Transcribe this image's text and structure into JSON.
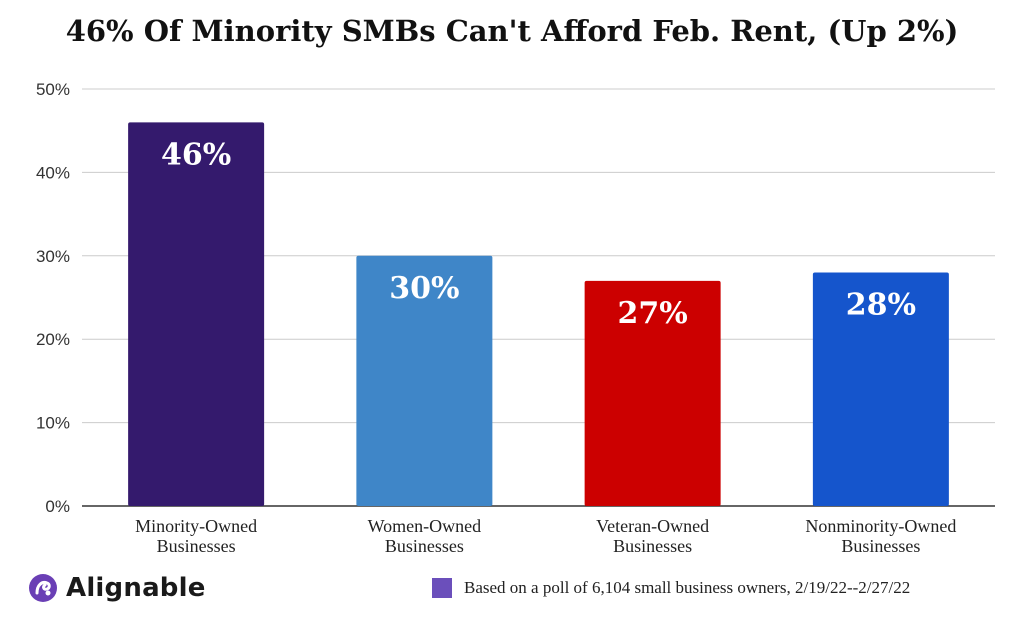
{
  "chart_data": {
    "type": "bar",
    "title": "46% Of Minority SMBs Can't Afford Feb. Rent, (Up 2%)",
    "categories": [
      [
        "Minority-Owned",
        "Businesses"
      ],
      [
        "Women-Owned",
        "Businesses"
      ],
      [
        "Veteran-Owned",
        "Businesses"
      ],
      [
        "Nonminority-Owned",
        "Businesses"
      ]
    ],
    "values": [
      46,
      30,
      27,
      28
    ],
    "data_labels": [
      "46%",
      "30%",
      "27%",
      "28%"
    ],
    "bar_colors": [
      "#341a6d",
      "#3f86c8",
      "#cc0000",
      "#1555cc"
    ],
    "ylim": [
      0,
      50
    ],
    "yticks": [
      0,
      10,
      20,
      30,
      40,
      50
    ],
    "ytick_labels": [
      "0%",
      "10%",
      "20%",
      "30%",
      "40%",
      "50%"
    ],
    "grid": true
  },
  "brand": {
    "name": "Alignable",
    "color": "#6a3fb5"
  },
  "legend": {
    "swatch_color": "#6b4fbb",
    "text": "Based on a poll of 6,104 small business owners, 2/19/22--2/27/22"
  }
}
